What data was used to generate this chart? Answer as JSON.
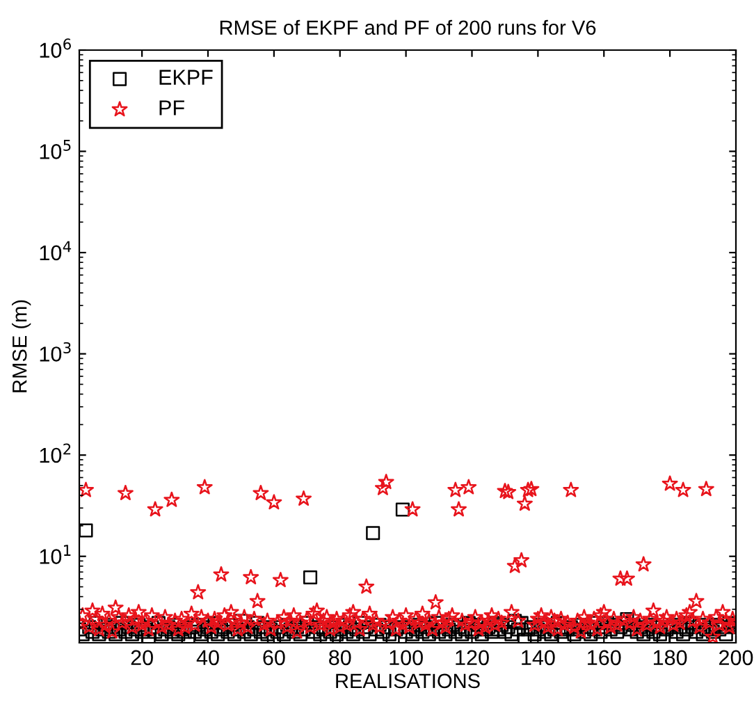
{
  "chart_data": {
    "type": "scatter",
    "title": "RMSE of EKPF and PF of 200 runs for V6",
    "xlabel": "REALISATIONS",
    "ylabel": "RMSE (m)",
    "x": [
      1,
      2,
      3,
      4,
      5,
      6,
      7,
      8,
      9,
      10,
      11,
      12,
      13,
      14,
      15,
      16,
      17,
      18,
      19,
      20,
      21,
      22,
      23,
      24,
      25,
      26,
      27,
      28,
      29,
      30,
      31,
      32,
      33,
      34,
      35,
      36,
      37,
      38,
      39,
      40,
      41,
      42,
      43,
      44,
      45,
      46,
      47,
      48,
      49,
      50,
      51,
      52,
      53,
      54,
      55,
      56,
      57,
      58,
      59,
      60,
      61,
      62,
      63,
      64,
      65,
      66,
      67,
      68,
      69,
      70,
      71,
      72,
      73,
      74,
      75,
      76,
      77,
      78,
      79,
      80,
      81,
      82,
      83,
      84,
      85,
      86,
      87,
      88,
      89,
      90,
      91,
      92,
      93,
      94,
      95,
      96,
      97,
      98,
      99,
      100,
      101,
      102,
      103,
      104,
      105,
      106,
      107,
      108,
      109,
      110,
      111,
      112,
      113,
      114,
      115,
      116,
      117,
      118,
      119,
      120,
      121,
      122,
      123,
      124,
      125,
      126,
      127,
      128,
      129,
      130,
      131,
      132,
      133,
      134,
      135,
      136,
      137,
      138,
      139,
      140,
      141,
      142,
      143,
      144,
      145,
      146,
      147,
      148,
      149,
      150,
      151,
      152,
      153,
      154,
      155,
      156,
      157,
      158,
      159,
      160,
      161,
      162,
      163,
      164,
      165,
      166,
      167,
      168,
      169,
      170,
      171,
      172,
      173,
      174,
      175,
      176,
      177,
      178,
      179,
      180,
      181,
      182,
      183,
      184,
      185,
      186,
      187,
      188,
      189,
      190,
      191,
      192,
      193,
      194,
      195,
      196,
      197,
      198,
      199,
      200
    ],
    "series": [
      {
        "name": "EKPF",
        "color": "#000000",
        "marker": "square",
        "values": [
          1.9,
          1.7,
          18,
          2.0,
          1.8,
          2.2,
          1.7,
          1.9,
          2.1,
          1.8,
          2.0,
          1.7,
          1.9,
          2.2,
          1.8,
          2.0,
          1.7,
          1.9,
          2.1,
          1.8,
          1.9,
          1.5,
          2.0,
          1.8,
          2.2,
          1.7,
          1.9,
          2.0,
          1.8,
          2.1,
          1.7,
          1.9,
          1.8,
          1.5,
          2.0,
          1.8,
          2.1,
          1.7,
          1.9,
          2.0,
          1.8,
          2.2,
          1.7,
          1.9,
          2.0,
          1.8,
          2.1,
          1.7,
          1.9,
          2.3,
          1.8,
          2.0,
          1.7,
          1.9,
          2.2,
          1.8,
          2.0,
          1.7,
          1.9,
          1.5,
          1.8,
          2.0,
          1.7,
          2.1,
          1.9,
          1.8,
          2.0,
          1.7,
          1.9,
          2.2,
          6.2,
          1.8,
          2.0,
          1.7,
          1.9,
          1.5,
          1.8,
          2.0,
          1.7,
          1.9,
          2.1,
          1.8,
          2.0,
          1.7,
          1.9,
          2.2,
          1.8,
          2.0,
          1.7,
          17,
          1.9,
          2.1,
          1.8,
          2.0,
          1.7,
          1.5,
          1.9,
          2.0,
          29,
          1.8,
          2.0,
          1.7,
          1.9,
          2.1,
          1.8,
          2.0,
          1.7,
          1.9,
          2.2,
          1.8,
          2.0,
          1.7,
          1.9,
          2.1,
          1.8,
          2.0,
          1.7,
          1.9,
          2.2,
          1.8,
          1.9,
          2.1,
          1.7,
          1.9,
          2.0,
          1.8,
          2.2,
          1.9,
          2.1,
          1.8,
          2.0,
          1.7,
          2.3,
          1.9,
          2.2,
          1.5,
          1.9,
          2.0,
          1.7,
          1.9,
          2.1,
          1.8,
          2.0,
          1.7,
          1.9,
          2.2,
          1.8,
          1.5,
          1.9,
          2.0,
          1.7,
          1.9,
          2.1,
          1.8,
          2.0,
          1.7,
          1.9,
          2.2,
          1.8,
          2.0,
          2.2,
          1.9,
          2.1,
          1.8,
          2.0,
          2.2,
          2.4,
          1.9,
          2.1,
          1.8,
          2.0,
          1.7,
          1.9,
          2.1,
          1.8,
          2.0,
          1.7,
          1.5,
          1.9,
          2.0,
          2.1,
          1.8,
          2.0,
          1.7,
          1.9,
          2.2,
          2.0,
          1.8,
          2.1,
          1.7,
          1.9,
          2.0,
          1.8,
          2.1,
          1.9,
          2.0,
          1.7,
          2.2,
          2.1,
          2.0
        ]
      },
      {
        "name": "PF",
        "color": "#e8141c",
        "marker": "star",
        "values": [
          2.2,
          2.6,
          45,
          2.0,
          2.9,
          2.4,
          1.9,
          2.7,
          2.1,
          2.3,
          1.8,
          3.1,
          2.5,
          2.2,
          42,
          2.6,
          2.0,
          2.4,
          2.8,
          2.1,
          2.3,
          1.9,
          2.6,
          29,
          2.2,
          2.0,
          2.5,
          2.1,
          36,
          2.3,
          1.9,
          2.4,
          2.0,
          2.2,
          2.7,
          2.1,
          4.4,
          2.5,
          48,
          2.3,
          2.0,
          2.4,
          2.2,
          6.6,
          2.6,
          2.1,
          2.8,
          2.3,
          1.9,
          2.2,
          2.5,
          2.0,
          6.2,
          2.4,
          3.6,
          42,
          2.1,
          2.3,
          1.9,
          34,
          2.2,
          5.8,
          2.5,
          2.0,
          2.3,
          2.6,
          1.8,
          2.2,
          37,
          2.4,
          2.0,
          2.7,
          2.9,
          2.1,
          2.3,
          2.5,
          1.9,
          2.2,
          2.4,
          2.0,
          2.3,
          2.1,
          2.6,
          2.8,
          2.2,
          1.9,
          2.4,
          5.0,
          2.7,
          2.1,
          2.3,
          2.0,
          47,
          54,
          2.2,
          2.5,
          1.9,
          2.3,
          2.1,
          2.6,
          2.0,
          29,
          2.4,
          2.2,
          2.7,
          2.1,
          2.3,
          1.9,
          3.5,
          2.5,
          2.2,
          2.0,
          2.4,
          2.6,
          45,
          29,
          2.3,
          2.1,
          48,
          2.2,
          2.5,
          1.9,
          2.2,
          2.0,
          2.3,
          2.6,
          2.1,
          2.4,
          2.2,
          44,
          43,
          2.8,
          8.0,
          2.3,
          9.1,
          33,
          45,
          46,
          2.1,
          2.4,
          2.6,
          2.2,
          2.0,
          2.5,
          2.3,
          1.9,
          2.4,
          2.1,
          2.2,
          45,
          2.0,
          2.3,
          1.8,
          2.5,
          2.2,
          2.1,
          2.4,
          1.9,
          2.6,
          2.8,
          2.2,
          2.0,
          2.4,
          2.1,
          6.0,
          2.3,
          6.0,
          2.2,
          2.5,
          1.9,
          2.3,
          8.3,
          2.1,
          2.4,
          2.9,
          2.2,
          2.0,
          2.3,
          2.5,
          52,
          2.1,
          2.4,
          2.2,
          45,
          2.6,
          2.8,
          2.3,
          3.6,
          2.0,
          2.4,
          46,
          2.2,
          1.6,
          2.5,
          2.1,
          2.8,
          2.3,
          2.0,
          2.4,
          2.2
        ]
      }
    ],
    "log": "y",
    "xlim": [
      1,
      200
    ],
    "xticks": [
      20,
      40,
      60,
      80,
      100,
      120,
      140,
      160,
      180,
      200
    ],
    "ylim": [
      1.4,
      1000000
    ],
    "yticks": [
      {
        "value": 10,
        "label": "10$^{1}$"
      },
      {
        "value": 100,
        "label": "10$^{2}$"
      },
      {
        "value": 1000,
        "label": "10$^{3}$"
      },
      {
        "value": 10000,
        "label": "10$^{4}$"
      },
      {
        "value": 100000,
        "label": "10$^{5}$"
      },
      {
        "value": 1000000,
        "label": "10$^{6}$"
      }
    ],
    "grid": false,
    "legend": "top left"
  }
}
